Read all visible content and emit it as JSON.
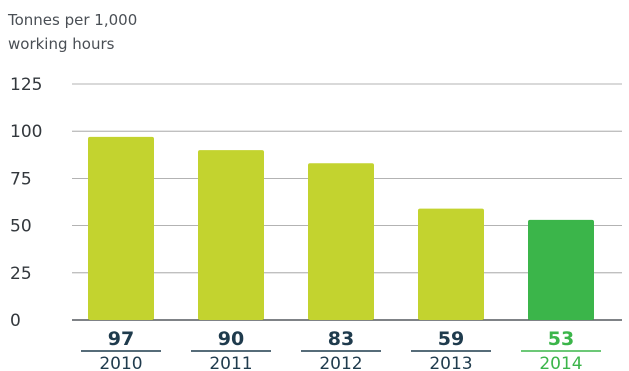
{
  "chart_data": {
    "type": "bar",
    "ylabel_lines": [
      "Tonnes per 1,000",
      "working hours"
    ],
    "title": "",
    "xlabel": "",
    "categories": [
      "2010",
      "2011",
      "2012",
      "2013",
      "2014"
    ],
    "values": [
      97,
      90,
      83,
      59,
      53
    ],
    "value_labels": [
      "97",
      "90",
      "83",
      "59",
      "53"
    ],
    "ylim": [
      0,
      125
    ],
    "yticks": [
      "0",
      "25",
      "50",
      "75",
      "100",
      "125"
    ],
    "grid": true,
    "highlight_index": 4,
    "colors": {
      "bar": "#c3d32f",
      "highlight_bar": "#3bb54a",
      "label": "#1f3b4d",
      "highlight_label": "#3bb54a",
      "grid": "#9a9a9a",
      "axis": "#33383d"
    }
  }
}
